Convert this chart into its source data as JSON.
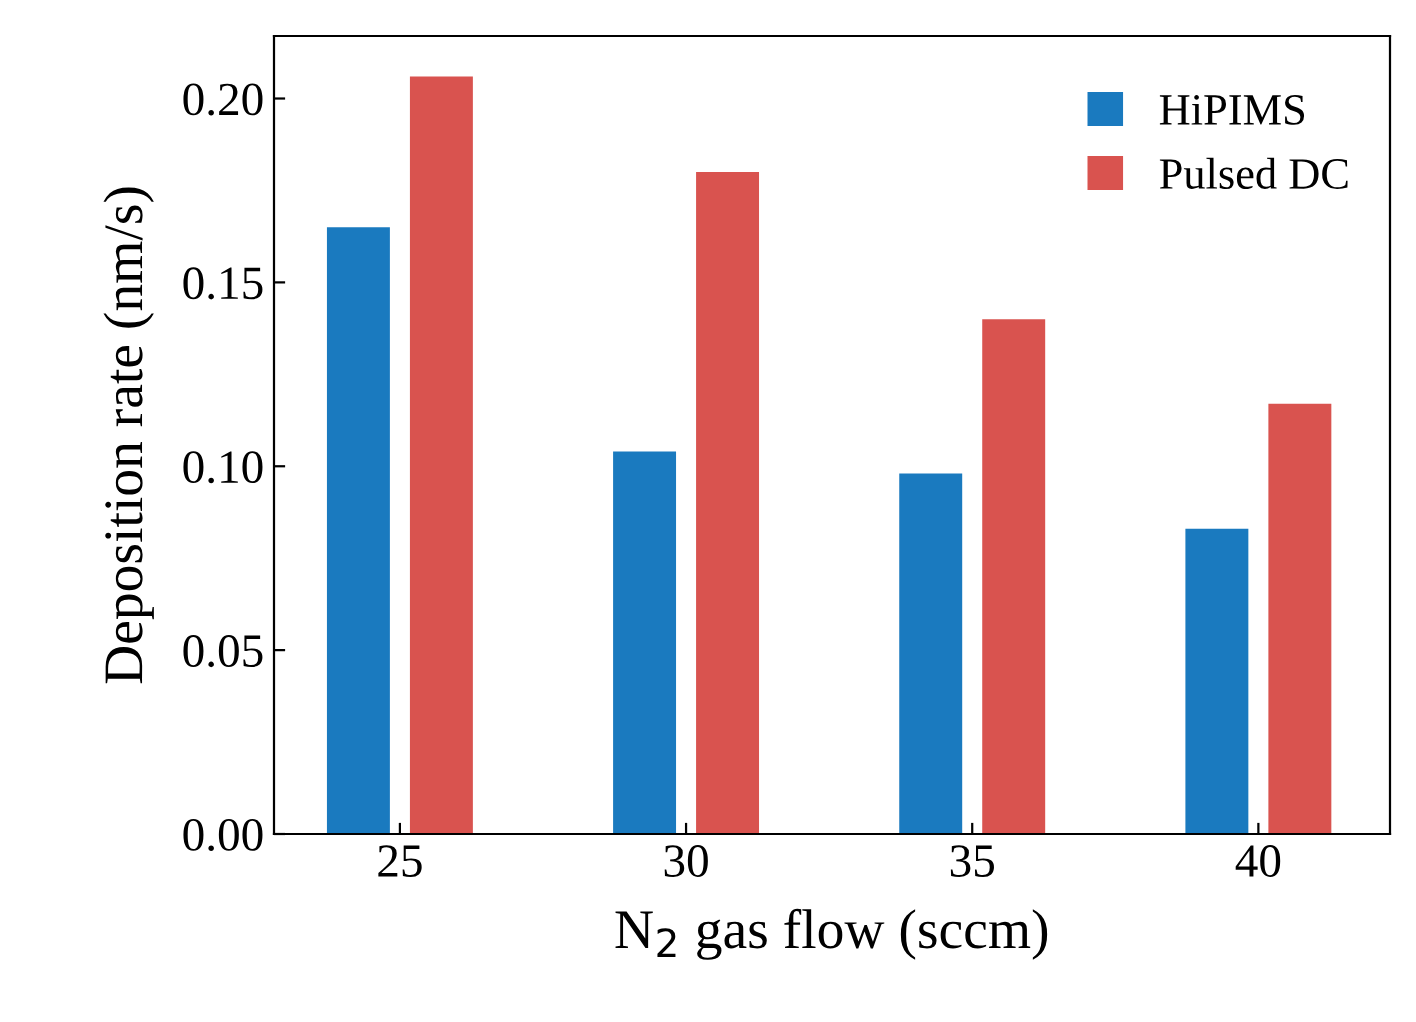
{
  "chart_data": {
    "type": "bar",
    "xlabel": "N$_{2}$ gas flow (sccm)",
    "ylabel": "Deposition rate (nm/s)",
    "categories": [
      "25",
      "30",
      "35",
      "40"
    ],
    "series": [
      {
        "name": "HiPIMS",
        "color": "#1a7abf",
        "values": [
          0.165,
          0.104,
          0.098,
          0.083
        ]
      },
      {
        "name": "Pulsed DC",
        "color": "#d9534f",
        "values": [
          0.206,
          0.18,
          0.14,
          0.117
        ]
      }
    ],
    "ylim": [
      0,
      0.217
    ],
    "yticks": [
      {
        "value": 0,
        "label": "0.00"
      },
      {
        "value": 0.05,
        "label": "0.05"
      },
      {
        "value": 0.1,
        "label": "0.10"
      },
      {
        "value": 0.15,
        "label": "0.15"
      },
      {
        "value": 0.2,
        "label": "0.20"
      }
    ],
    "grid": false,
    "legend": "top right"
  }
}
